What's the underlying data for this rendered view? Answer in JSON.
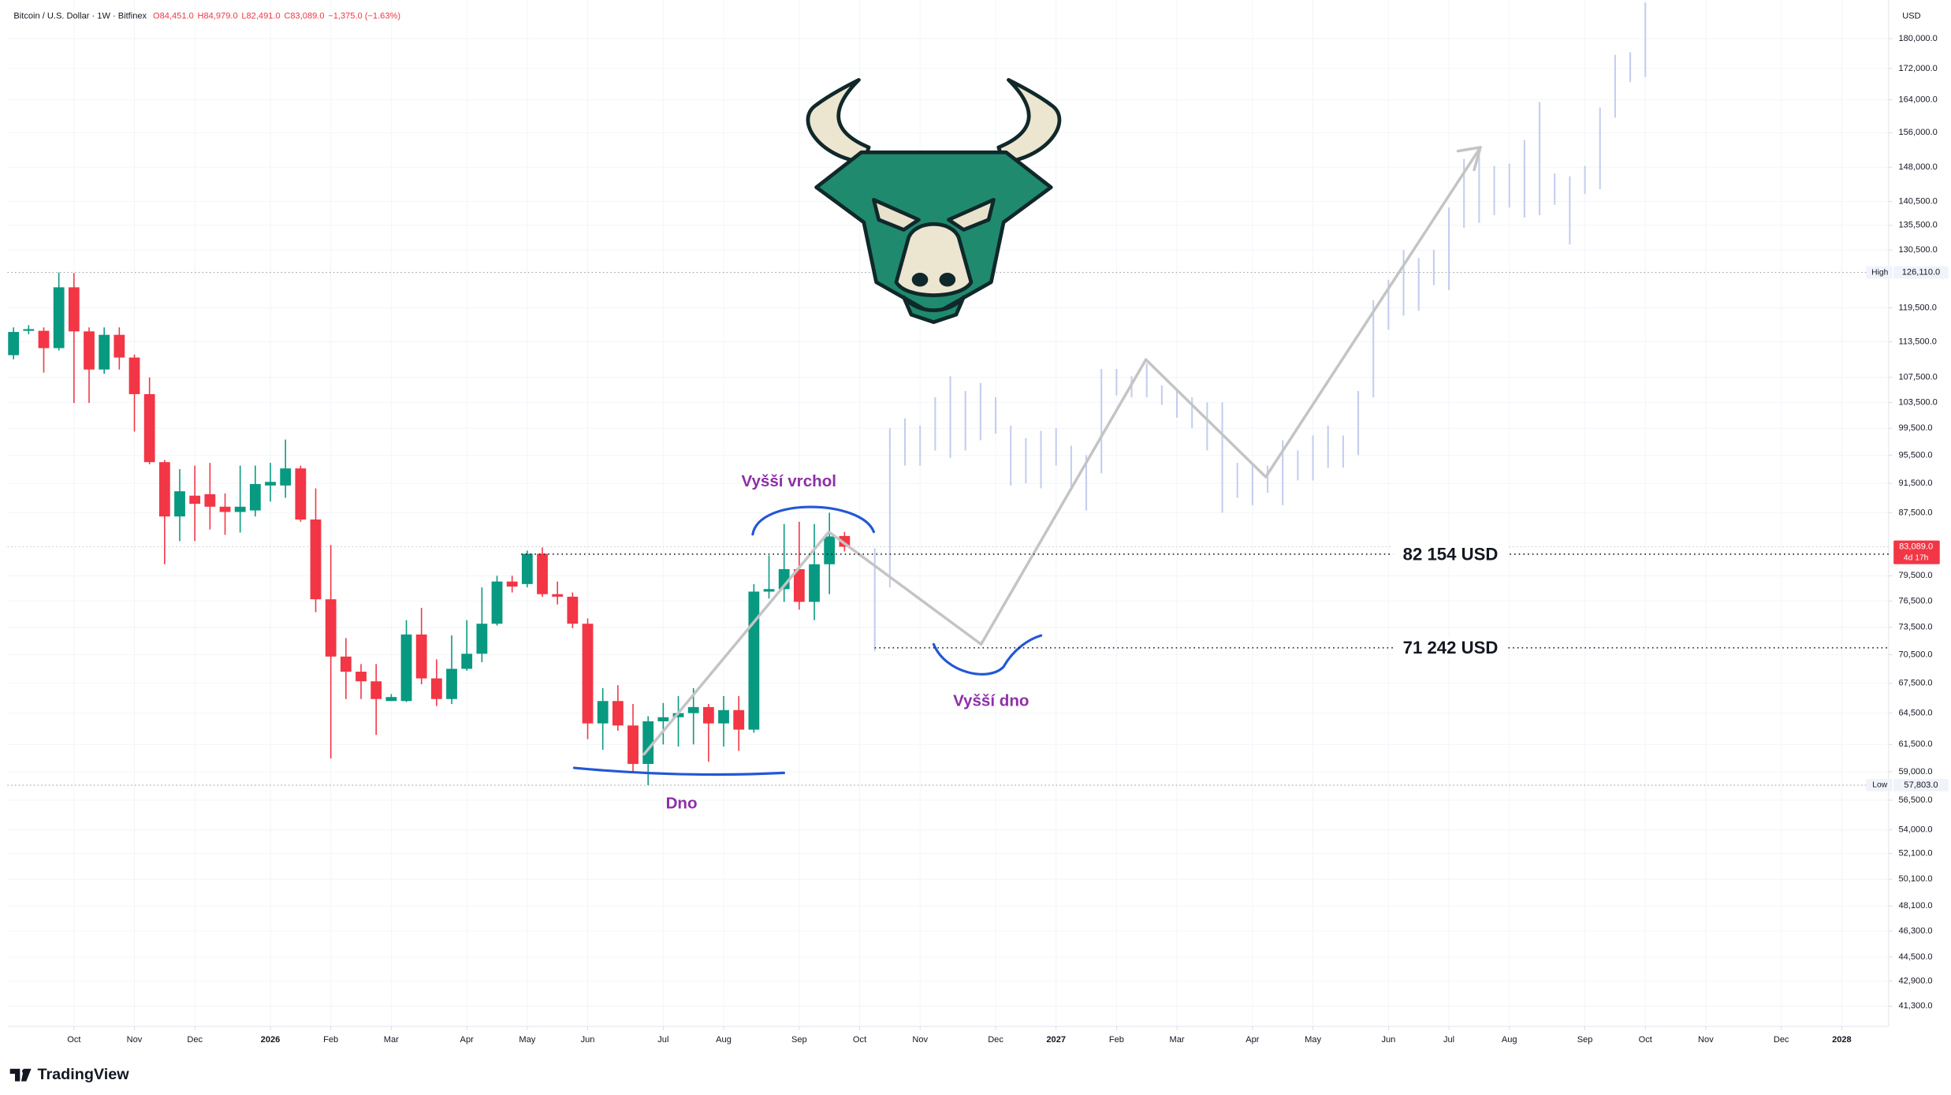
{
  "header": {
    "symbol": "Bitcoin / U.S. Dollar · 1W · Bitfinex",
    "ohlc": [
      {
        "value": 84451,
        "label": "O84,451.0"
      },
      {
        "value": 84979,
        "label": "H84,979.0"
      },
      {
        "value": 82491,
        "label": "L82,491.0"
      },
      {
        "value": 83089,
        "label": "C83,089.0"
      }
    ],
    "change": "−1,375.0 (−1.63%)"
  },
  "chart_data": {
    "type": "candlestick",
    "x": [
      0,
      1,
      2,
      3,
      4,
      5,
      6,
      7,
      8,
      9,
      10,
      11,
      12,
      13,
      14,
      15,
      16,
      17,
      18,
      19,
      20,
      21,
      22,
      23,
      24,
      25,
      26,
      27,
      28,
      29,
      30,
      31,
      32,
      33,
      34,
      35,
      36,
      37,
      38,
      39,
      40,
      41,
      42,
      43,
      44,
      45,
      46,
      47,
      48,
      49,
      50,
      51,
      52,
      53,
      54,
      55
    ],
    "open": [
      111200,
      115400,
      115400,
      112400,
      123300,
      115300,
      108800,
      114700,
      110800,
      104800,
      94500,
      87000,
      89800,
      90000,
      88300,
      87600,
      87800,
      91200,
      91200,
      93600,
      86600,
      76700,
      70300,
      68700,
      67700,
      65700,
      65700,
      72700,
      68000,
      65900,
      69000,
      70600,
      73900,
      78800,
      78500,
      82200,
      77300,
      77000,
      73900,
      63500,
      65700,
      63300,
      59700,
      63700,
      64100,
      64500,
      65100,
      63500,
      64800,
      62900,
      77600,
      77900,
      80300,
      76400,
      80900,
      84451
    ],
    "high": [
      116000,
      116400,
      116000,
      126110,
      126000,
      116000,
      116000,
      116000,
      111300,
      107500,
      94800,
      93500,
      94000,
      94400,
      90100,
      94000,
      94000,
      94400,
      97800,
      94000,
      90800,
      83300,
      72300,
      69500,
      69500,
      66400,
      74300,
      75700,
      70000,
      72600,
      74300,
      78100,
      79500,
      79500,
      82600,
      83000,
      78800,
      77500,
      74500,
      67000,
      67300,
      65400,
      64200,
      65500,
      66200,
      67000,
      65400,
      66200,
      66200,
      78500,
      82000,
      86000,
      86300,
      86000,
      87500,
      84979
    ],
    "low": [
      110500,
      114800,
      108300,
      112000,
      103400,
      103400,
      108100,
      108800,
      99000,
      94200,
      80900,
      83800,
      83800,
      85300,
      84600,
      84900,
      87000,
      89000,
      89500,
      86300,
      75200,
      60200,
      65900,
      65900,
      62400,
      65700,
      65600,
      67400,
      65200,
      65400,
      68800,
      69700,
      73700,
      77500,
      78100,
      77000,
      76100,
      73400,
      62000,
      61000,
      62800,
      59000,
      57803,
      61500,
      61300,
      61500,
      59900,
      61300,
      60900,
      62600,
      76800,
      76400,
      75500,
      74300,
      77300,
      82491
    ],
    "close": [
      115200,
      115700,
      112400,
      123300,
      115300,
      108800,
      114700,
      110800,
      104800,
      94500,
      87000,
      90400,
      88700,
      88300,
      87600,
      88300,
      91400,
      91700,
      93600,
      86600,
      76700,
      70300,
      68700,
      67700,
      65900,
      66100,
      72700,
      68000,
      65900,
      69000,
      70600,
      73900,
      78800,
      78200,
      82200,
      77300,
      77000,
      73900,
      63500,
      65700,
      63300,
      59700,
      63700,
      64100,
      64500,
      65100,
      63500,
      64800,
      62900,
      77600,
      77900,
      80300,
      76400,
      80900,
      84400,
      83089
    ],
    "up_color": "#089981",
    "down_color": "#f23645",
    "projection": {
      "x": [
        57,
        58,
        59,
        60,
        61,
        62,
        63,
        64,
        65,
        66,
        67,
        68,
        69,
        70,
        71,
        72,
        73,
        74,
        75,
        76,
        77,
        78,
        79,
        80,
        81,
        82,
        83,
        84,
        85,
        86,
        87,
        88,
        89,
        90,
        91,
        92,
        93,
        94,
        95,
        96,
        97,
        98,
        99,
        100,
        101,
        102,
        103,
        104,
        105,
        106,
        107,
        108
      ],
      "high": [
        82900,
        99500,
        101000,
        99900,
        104300,
        107700,
        105300,
        106600,
        104300,
        99900,
        98000,
        99100,
        99500,
        96900,
        95500,
        108900,
        108900,
        107700,
        109800,
        106200,
        105300,
        104300,
        103500,
        103500,
        94400,
        94000,
        94000,
        97700,
        96200,
        98400,
        99900,
        98400,
        105300,
        120900,
        124700,
        130500,
        128900,
        130500,
        139200,
        149900,
        151600,
        148300,
        148800,
        154300,
        163400,
        146600,
        146000,
        148300,
        162100,
        175600,
        176300,
        190200
      ],
      "low": [
        70900,
        78100,
        94000,
        94000,
        96200,
        95100,
        96200,
        97700,
        98700,
        91200,
        91500,
        90800,
        94000,
        90500,
        87800,
        92900,
        104600,
        104300,
        104300,
        103100,
        101100,
        99500,
        96200,
        87500,
        89500,
        88500,
        90200,
        88500,
        91900,
        91900,
        93700,
        93700,
        95500,
        104300,
        115600,
        118100,
        119000,
        123700,
        122800,
        135000,
        136000,
        137600,
        139200,
        137100,
        137600,
        139800,
        131600,
        142100,
        143200,
        159600,
        168500,
        169800
      ],
      "color": "#c3cdee"
    },
    "xlim": [
      -0.4,
      124.1
    ],
    "xticks": [
      {
        "value": 4,
        "label": "Oct"
      },
      {
        "value": 8,
        "label": "Nov"
      },
      {
        "value": 12,
        "label": "Dec"
      },
      {
        "value": 17,
        "label": "2026"
      },
      {
        "value": 21,
        "label": "Feb"
      },
      {
        "value": 25,
        "label": "Mar"
      },
      {
        "value": 30,
        "label": "Apr"
      },
      {
        "value": 34,
        "label": "May"
      },
      {
        "value": 38,
        "label": "Jun"
      },
      {
        "value": 43,
        "label": "Jul"
      },
      {
        "value": 47,
        "label": "Aug"
      },
      {
        "value": 52,
        "label": "Sep"
      },
      {
        "value": 56,
        "label": "Oct"
      },
      {
        "value": 60,
        "label": "Nov"
      },
      {
        "value": 65,
        "label": "Dec"
      },
      {
        "value": 69,
        "label": "2027"
      },
      {
        "value": 73,
        "label": "Feb"
      },
      {
        "value": 77,
        "label": "Mar"
      },
      {
        "value": 82,
        "label": "Apr"
      },
      {
        "value": 86,
        "label": "May"
      },
      {
        "value": 91,
        "label": "Jun"
      },
      {
        "value": 95,
        "label": "Jul"
      },
      {
        "value": 99,
        "label": "Aug"
      },
      {
        "value": 104,
        "label": "Sep"
      },
      {
        "value": 108,
        "label": "Oct"
      },
      {
        "value": 112,
        "label": "Nov"
      },
      {
        "value": 117,
        "label": "Dec"
      },
      {
        "value": 121,
        "label": "2028"
      }
    ],
    "ylim": [
      40050,
      190900
    ],
    "log_scale": true,
    "yticks": [
      {
        "value": 180000,
        "label": "180,000.0"
      },
      {
        "value": 172000,
        "label": "172,000.0"
      },
      {
        "value": 164000,
        "label": "164,000.0"
      },
      {
        "value": 156000,
        "label": "156,000.0"
      },
      {
        "value": 148000,
        "label": "148,000.0"
      },
      {
        "value": 140500,
        "label": "140,500.0"
      },
      {
        "value": 135500,
        "label": "135,500.0"
      },
      {
        "value": 130500,
        "label": "130,500.0"
      },
      {
        "value": 119500,
        "label": "119,500.0"
      },
      {
        "value": 113500,
        "label": "113,500.0"
      },
      {
        "value": 107500,
        "label": "107,500.0"
      },
      {
        "value": 103500,
        "label": "103,500.0"
      },
      {
        "value": 99500,
        "label": "99,500.0"
      },
      {
        "value": 95500,
        "label": "95,500.0"
      },
      {
        "value": 91500,
        "label": "91,500.0"
      },
      {
        "value": 87500,
        "label": "87,500.0"
      },
      {
        "value": 79500,
        "label": "79,500.0"
      },
      {
        "value": 76500,
        "label": "76,500.0"
      },
      {
        "value": 73500,
        "label": "73,500.0"
      },
      {
        "value": 70500,
        "label": "70,500.0"
      },
      {
        "value": 67500,
        "label": "67,500.0"
      },
      {
        "value": 64500,
        "label": "64,500.0"
      },
      {
        "value": 61500,
        "label": "61,500.0"
      },
      {
        "value": 59000,
        "label": "59,000.0"
      },
      {
        "value": 56500,
        "label": "56,500.0"
      },
      {
        "value": 54000,
        "label": "54,000.0"
      },
      {
        "value": 52100,
        "label": "52,100.0"
      },
      {
        "value": 50100,
        "label": "50,100.0"
      },
      {
        "value": 48100,
        "label": "48,100.0"
      },
      {
        "value": 46300,
        "label": "46,300.0"
      },
      {
        "value": 44500,
        "label": "44,500.0"
      },
      {
        "value": 42900,
        "label": "42,900.0"
      },
      {
        "value": 41300,
        "label": "41,300.0"
      }
    ],
    "grid": true,
    "y_unit": "USD",
    "high_marker": {
      "label": "High",
      "value": {
        "value": 126110,
        "label": "126,110.0"
      }
    },
    "low_marker": {
      "label": "Low",
      "value": {
        "value": 57803,
        "label": "57,803.0"
      }
    },
    "last_price": {
      "value": {
        "value": 83089,
        "label": "83,089.0"
      },
      "countdown": "4d 17h",
      "color": "#f23645"
    },
    "levels": [
      {
        "value": 82154,
        "label": "82 154 USD"
      },
      {
        "value": 71242,
        "label": "71 242 USD"
      }
    ],
    "annotations": [
      "Vyšší vrchol",
      "Vyšší dno",
      "Dno"
    ]
  },
  "branding": "TradingView"
}
